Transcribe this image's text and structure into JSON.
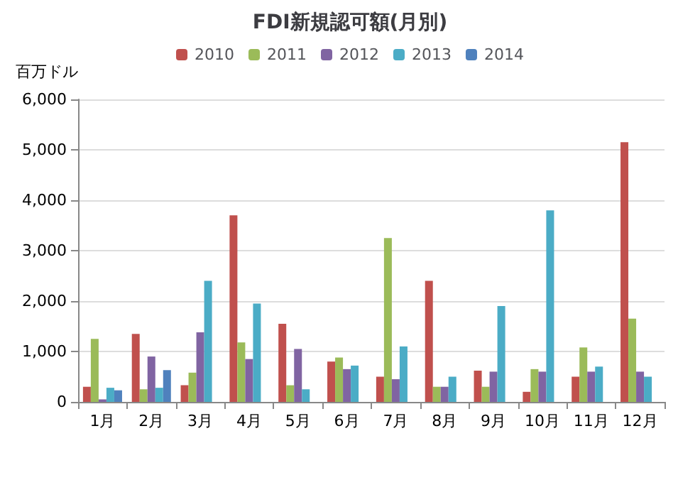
{
  "chart_data": {
    "type": "bar",
    "title": "FDI新規認可額(月別)",
    "ylabel": "百万ドル",
    "categories": [
      "1月",
      "2月",
      "3月",
      "4月",
      "5月",
      "6月",
      "7月",
      "8月",
      "9月",
      "10月",
      "11月",
      "12月"
    ],
    "series": [
      {
        "name": "2010",
        "color": "#c0504d",
        "values": [
          300,
          1350,
          330,
          3700,
          1550,
          800,
          500,
          2400,
          620,
          200,
          500,
          5150
        ]
      },
      {
        "name": "2011",
        "color": "#9bbb59",
        "values": [
          1250,
          250,
          580,
          1180,
          330,
          880,
          3250,
          300,
          300,
          650,
          1080,
          1650
        ]
      },
      {
        "name": "2012",
        "color": "#8064a2",
        "values": [
          50,
          900,
          1380,
          850,
          1050,
          650,
          450,
          300,
          600,
          600,
          600,
          600
        ]
      },
      {
        "name": "2013",
        "color": "#4bacc6",
        "values": [
          280,
          280,
          2400,
          1950,
          250,
          720,
          1100,
          500,
          1900,
          3800,
          700,
          500
        ]
      },
      {
        "name": "2014",
        "color": "#4f81bd",
        "values": [
          230,
          630,
          null,
          null,
          null,
          null,
          null,
          null,
          null,
          null,
          null,
          null
        ]
      }
    ],
    "ylim": [
      0,
      6000
    ],
    "yticks": [
      0,
      {
        "value": 1000,
        "label": "1,000"
      },
      {
        "value": 2000,
        "label": "2,000"
      },
      {
        "value": 3000,
        "label": "3,000"
      },
      {
        "value": 4000,
        "label": "4,000"
      },
      {
        "value": 5000,
        "label": "5,000"
      },
      {
        "value": 6000,
        "label": "6,000"
      }
    ],
    "grid": "y",
    "legend": "top"
  }
}
